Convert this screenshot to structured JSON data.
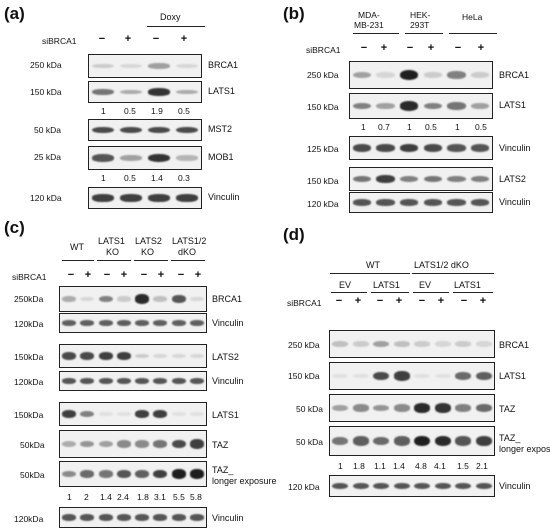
{
  "panels": {
    "a": {
      "label": "(a)",
      "group": "Doxy",
      "si_label": "siBRCA1",
      "si_states": [
        "−",
        "+",
        "−",
        "+"
      ],
      "rows": [
        {
          "kda": "250 kDa",
          "protein": "BRCA1"
        },
        {
          "kda": "150 kDa",
          "protein": "LATS1",
          "quant": [
            "1",
            "0.5",
            "1.9",
            "0.5"
          ]
        },
        {
          "kda": "50 kDa",
          "protein": "MST2"
        },
        {
          "kda": "25 kDa",
          "protein": "MOB1",
          "quant": [
            "1",
            "0.5",
            "1.4",
            "0.3"
          ]
        },
        {
          "kda": "120 kDa",
          "protein": "Vinculin"
        }
      ]
    },
    "b": {
      "label": "(b)",
      "groups": [
        "MDA-",
        "MB-231",
        "HEK-",
        "293T",
        "HeLa"
      ],
      "si_label": "siBRCA1",
      "si_states": [
        "−",
        "+",
        "−",
        "+",
        "−",
        "+"
      ],
      "rows": [
        {
          "kda": "250 kDa",
          "protein": "BRCA1"
        },
        {
          "kda": "150 kDa",
          "protein": "LATS1",
          "quant": [
            "1",
            "0.7",
            "1",
            "0.5",
            "1",
            "0.5"
          ]
        },
        {
          "kda": "125 kDa",
          "protein": "Vinculin"
        },
        {
          "kda": "150 kDa",
          "protein": "LATS2"
        },
        {
          "kda": "120 kDa",
          "protein": "Vinculin"
        }
      ]
    },
    "c": {
      "label": "(c)",
      "groups": [
        "WT",
        "LATS1",
        "KO",
        "LATS2",
        "KO",
        "LATS1/2",
        "dKO"
      ],
      "si_label": "siBRCA1",
      "si_states": [
        "−",
        "+",
        "−",
        "+",
        "−",
        "+",
        "−",
        "+"
      ],
      "rows": [
        {
          "kda": "250kDa",
          "protein": "BRCA1"
        },
        {
          "kda": "120kDa",
          "protein": "Vinculin"
        },
        {
          "kda": "150kDa",
          "protein": "LATS2"
        },
        {
          "kda": "120kDa",
          "protein": "Vinculin"
        },
        {
          "kda": "150kDa",
          "protein": "LATS1"
        },
        {
          "kda": "50kDa",
          "protein": "TAZ"
        },
        {
          "kda": "50kDa",
          "protein": "TAZ_",
          "protein2": "longer exposure",
          "quant": [
            "1",
            "2",
            "1.4",
            "2.4",
            "1.8",
            "3.1",
            "5.5",
            "5.8"
          ]
        },
        {
          "kda": "120kDa",
          "protein": "Vinculin"
        }
      ]
    },
    "d": {
      "label": "(d)",
      "groups": [
        "WT",
        "LATS1/2 dKO"
      ],
      "subgroups": [
        "EV",
        "LATS1",
        "EV",
        "LATS1"
      ],
      "si_label": "siBRCA1",
      "si_states": [
        "−",
        "+",
        "−",
        "+",
        "−",
        "+",
        "−",
        "+"
      ],
      "rows": [
        {
          "kda": "250 kDa",
          "protein": "BRCA1"
        },
        {
          "kda": "150 kDa",
          "protein": "LATS1"
        },
        {
          "kda": "50 kDa",
          "protein": "TAZ"
        },
        {
          "kda": "50 kDa",
          "protein": "TAZ_",
          "protein2": "longer exposure",
          "quant": [
            "1",
            "1.8",
            "1.1",
            "1.4",
            "4.8",
            "4.1",
            "1.5",
            "2.1"
          ]
        },
        {
          "kda": "120 kDa",
          "protein": "Vinculin"
        }
      ]
    }
  },
  "band_intensities": {
    "a": [
      [
        0.15,
        0.1,
        0.35,
        0.1
      ],
      [
        0.55,
        0.3,
        0.85,
        0.3
      ],
      [
        0.75,
        0.75,
        0.75,
        0.75
      ],
      [
        0.7,
        0.35,
        0.85,
        0.25
      ],
      [
        0.8,
        0.8,
        0.8,
        0.8
      ]
    ],
    "b": [
      [
        0.35,
        0.1,
        0.95,
        0.15,
        0.5,
        0.15
      ],
      [
        0.5,
        0.35,
        0.9,
        0.5,
        0.55,
        0.35
      ],
      [
        0.75,
        0.75,
        0.8,
        0.75,
        0.7,
        0.7
      ],
      [
        0.55,
        0.8,
        0.5,
        0.55,
        0.5,
        0.5
      ],
      [
        0.7,
        0.7,
        0.7,
        0.7,
        0.7,
        0.7
      ]
    ],
    "c": [
      [
        0.3,
        0.1,
        0.5,
        0.15,
        0.9,
        0.2,
        0.7,
        0.1
      ],
      [
        0.65,
        0.65,
        0.65,
        0.65,
        0.65,
        0.65,
        0.65,
        0.65
      ],
      [
        0.75,
        0.75,
        0.8,
        0.8,
        0.15,
        0.1,
        0.1,
        0.1
      ],
      [
        0.7,
        0.7,
        0.7,
        0.7,
        0.7,
        0.7,
        0.7,
        0.7
      ],
      [
        0.8,
        0.5,
        0.05,
        0.05,
        0.8,
        0.8,
        0.05,
        0.05
      ],
      [
        0.3,
        0.4,
        0.35,
        0.45,
        0.45,
        0.55,
        0.75,
        0.8
      ],
      [
        0.45,
        0.6,
        0.55,
        0.7,
        0.65,
        0.8,
        0.95,
        0.95
      ],
      [
        0.7,
        0.7,
        0.7,
        0.7,
        0.7,
        0.7,
        0.7,
        0.7
      ]
    ],
    "d": [
      [
        0.2,
        0.15,
        0.35,
        0.2,
        0.15,
        0.1,
        0.15,
        0.1
      ],
      [
        0.05,
        0.05,
        0.75,
        0.8,
        0.05,
        0.05,
        0.6,
        0.65
      ],
      [
        0.35,
        0.45,
        0.4,
        0.45,
        0.9,
        0.85,
        0.5,
        0.6
      ],
      [
        0.55,
        0.65,
        0.6,
        0.65,
        0.95,
        0.9,
        0.7,
        0.8
      ],
      [
        0.7,
        0.7,
        0.7,
        0.7,
        0.7,
        0.7,
        0.7,
        0.7
      ]
    ]
  }
}
